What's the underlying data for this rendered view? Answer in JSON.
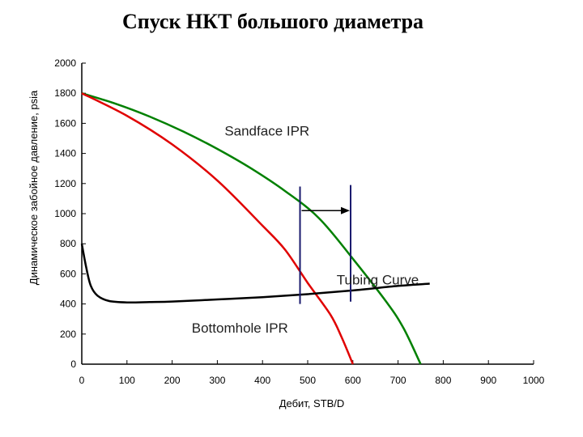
{
  "chart_data": {
    "type": "line",
    "title": "Спуск НКТ большого диаметра",
    "xlabel": "Дебит, STB/D",
    "ylabel": "Динамическое забойное давление, psia",
    "xlim": [
      0,
      1000
    ],
    "ylim": [
      0,
      2000
    ],
    "xticks": [
      0,
      100,
      200,
      300,
      400,
      500,
      600,
      700,
      800,
      900,
      1000
    ],
    "yticks": [
      0,
      200,
      400,
      600,
      800,
      1000,
      1200,
      1400,
      1600,
      1800,
      2000
    ],
    "grid": false,
    "legend": "none",
    "annotations": [
      {
        "text": "Sandface IPR",
        "x": 410,
        "y": 1520
      },
      {
        "text": "Tubing Curve",
        "x": 655,
        "y": 530
      },
      {
        "text": "Bottomhole IPR",
        "x": 350,
        "y": 210
      }
    ],
    "series": [
      {
        "color": "#008000",
        "x": [
          0,
          75,
          150,
          225,
          300,
          375,
          450,
          525,
          600,
          675,
          712,
          750
        ],
        "y": [
          1800,
          1730,
          1645,
          1545,
          1430,
          1300,
          1150,
          970,
          700,
          410,
          240,
          0
        ]
      },
      {
        "color": "#e00000",
        "x": [
          0,
          100,
          200,
          300,
          400,
          450,
          500,
          550,
          575,
          600
        ],
        "y": [
          1800,
          1650,
          1460,
          1220,
          920,
          760,
          540,
          330,
          180,
          0
        ]
      },
      {
        "color": "#000000",
        "x": [
          0,
          10,
          20,
          35,
          60,
          100,
          150,
          200,
          300,
          400,
          500,
          600,
          700,
          770
        ],
        "y": [
          800,
          640,
          520,
          455,
          420,
          410,
          413,
          416,
          430,
          445,
          465,
          490,
          520,
          535
        ]
      }
    ],
    "vertical_lines": [
      {
        "color": "#1a1a6e",
        "x": 483,
        "y": [
          400,
          1180
        ]
      },
      {
        "color": "#1a1a6e",
        "x": 595,
        "y": [
          415,
          1190
        ]
      }
    ],
    "arrow": {
      "color": "#000000",
      "x": [
        483,
        595
      ],
      "y": 1020
    }
  }
}
